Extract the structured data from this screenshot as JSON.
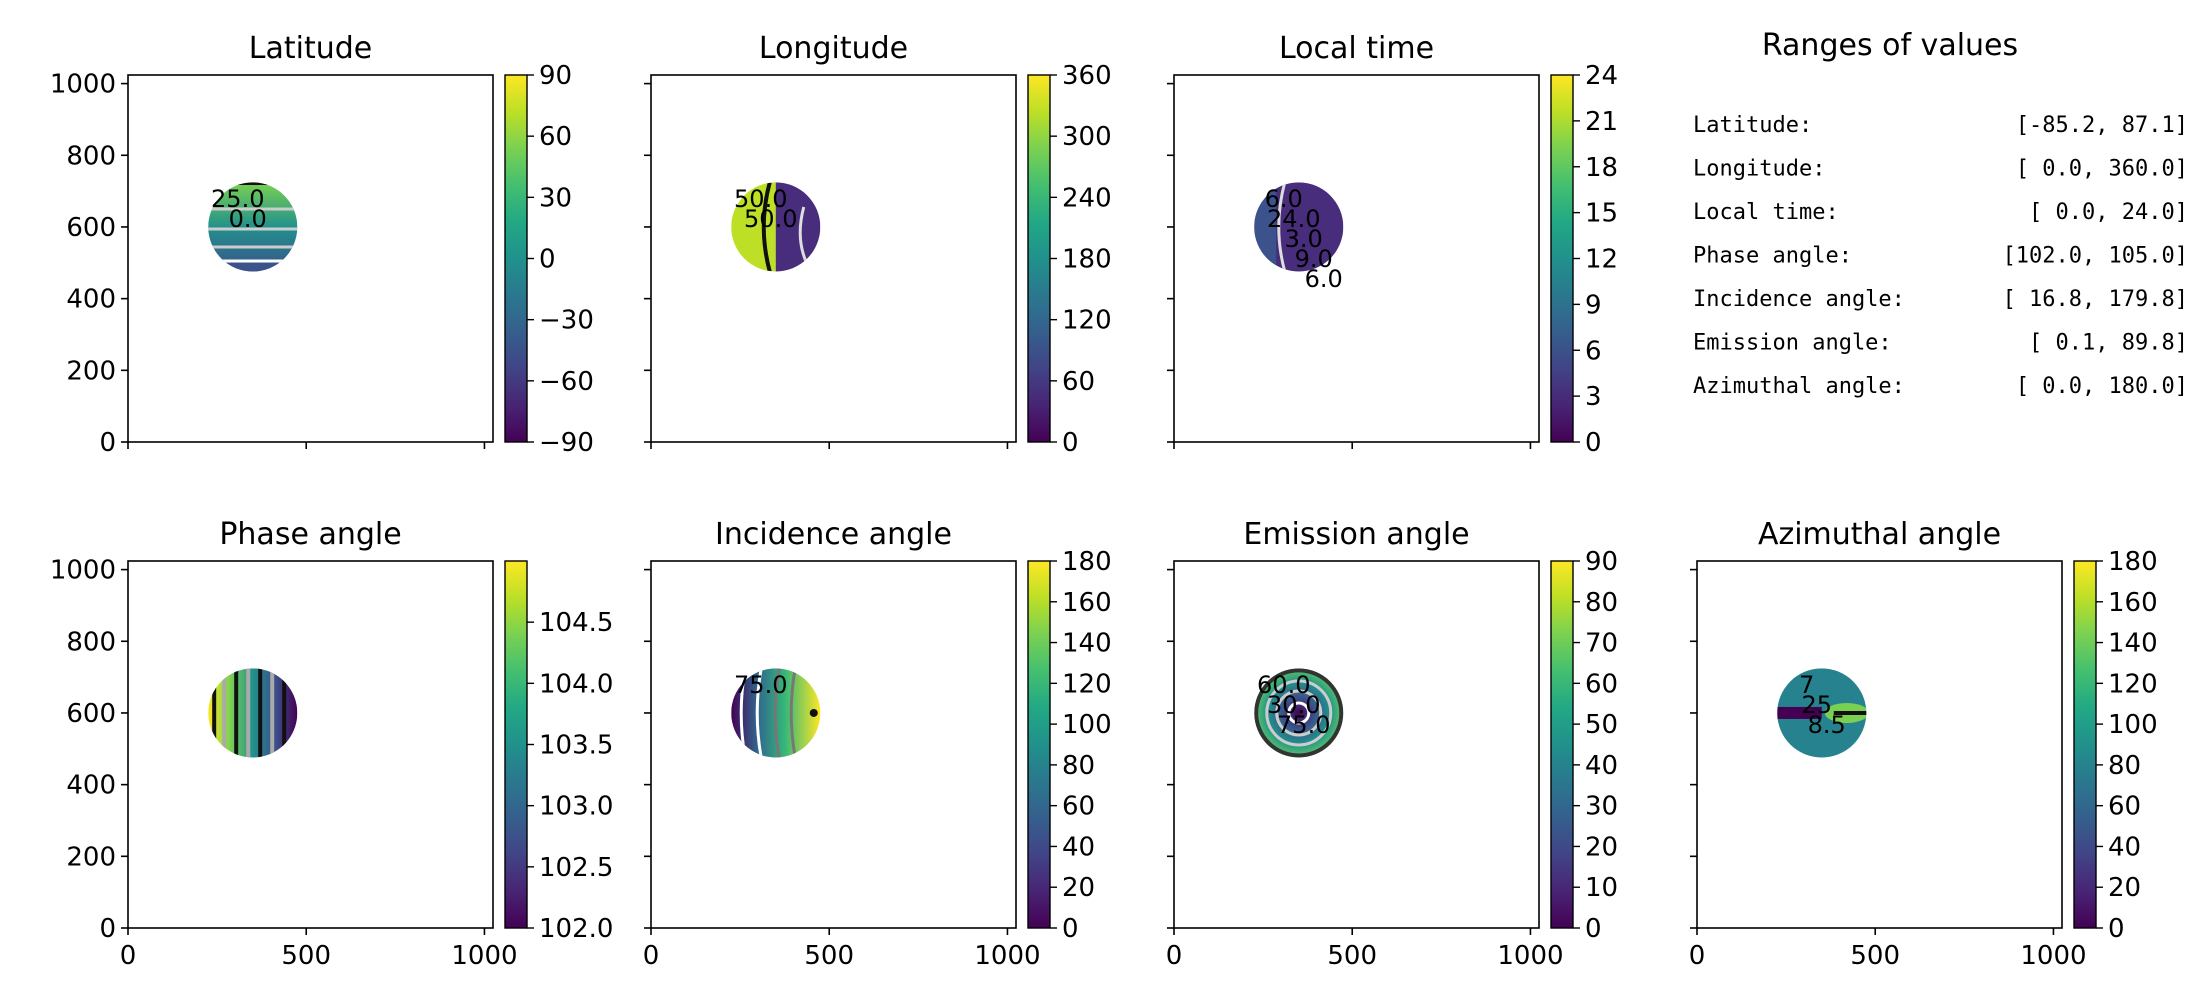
{
  "figure": {
    "background": "#ffffff"
  },
  "axes_common": {
    "xlim": [
      0,
      1024
    ],
    "ylim": [
      0,
      1024
    ],
    "xticks": [
      0,
      500,
      1000
    ],
    "yticks": [
      0,
      200,
      400,
      600,
      800,
      1000
    ],
    "disk_center": [
      350,
      600
    ],
    "disk_radius": 125
  },
  "chart_data": [
    {
      "type": "heatmap",
      "title": "Latitude",
      "show_yticklabels": true,
      "show_xticklabels": false,
      "colorbar": {
        "ticks": [
          "90",
          "60",
          "30",
          "0",
          "−30",
          "−60",
          "−90"
        ],
        "range": [
          -90,
          90
        ]
      },
      "contour_labels": [
        "25.0",
        "0.0"
      ]
    },
    {
      "type": "heatmap",
      "title": "Longitude",
      "show_yticklabels": false,
      "show_xticklabels": false,
      "colorbar": {
        "ticks": [
          "360",
          "300",
          "240",
          "180",
          "120",
          "60",
          "0"
        ],
        "range": [
          0,
          360
        ]
      },
      "contour_labels": [
        "50.0",
        "50.0"
      ]
    },
    {
      "type": "heatmap",
      "title": "Local time",
      "show_yticklabels": false,
      "show_xticklabels": false,
      "colorbar": {
        "ticks": [
          "24",
          "21",
          "18",
          "15",
          "12",
          "9",
          "6",
          "3",
          "0"
        ],
        "range": [
          0,
          24
        ]
      },
      "contour_labels": [
        "6.0",
        "24.0",
        "3.0",
        "9.0",
        "6.0"
      ]
    },
    {
      "type": "heatmap",
      "title": "Phase angle",
      "show_yticklabels": true,
      "show_xticklabels": true,
      "colorbar": {
        "ticks": [
          "104.5",
          "104.0",
          "103.5",
          "103.0",
          "102.5",
          "102.0"
        ],
        "range": [
          102.0,
          105.0
        ]
      },
      "contour_labels": []
    },
    {
      "type": "heatmap",
      "title": "Incidence angle",
      "show_yticklabels": false,
      "show_xticklabels": true,
      "colorbar": {
        "ticks": [
          "180",
          "160",
          "140",
          "120",
          "100",
          "80",
          "60",
          "40",
          "20",
          "0"
        ],
        "range": [
          0,
          180
        ]
      },
      "contour_labels": [
        "75.0"
      ]
    },
    {
      "type": "heatmap",
      "title": "Emission angle",
      "show_yticklabels": false,
      "show_xticklabels": true,
      "colorbar": {
        "ticks": [
          "90",
          "80",
          "70",
          "60",
          "50",
          "40",
          "30",
          "20",
          "10",
          "0"
        ],
        "range": [
          0,
          90
        ]
      },
      "contour_labels": [
        "60.0",
        "30.0",
        "75.0"
      ]
    },
    {
      "type": "heatmap",
      "title": "Azimuthal angle",
      "show_yticklabels": false,
      "show_xticklabels": true,
      "colorbar": {
        "ticks": [
          "180",
          "160",
          "140",
          "120",
          "100",
          "80",
          "60",
          "40",
          "20",
          "0"
        ],
        "range": [
          0,
          180
        ]
      },
      "contour_labels": [
        "7",
        "25",
        "8.5"
      ]
    }
  ],
  "ranges_panel": {
    "title": "Ranges of values",
    "rows": [
      {
        "label": "Latitude:",
        "value": "[-85.2,  87.1]"
      },
      {
        "label": "Longitude:",
        "value": "[  0.0, 360.0]"
      },
      {
        "label": "Local time:",
        "value": "[  0.0,  24.0]"
      },
      {
        "label": "Phase angle:",
        "value": "[102.0, 105.0]"
      },
      {
        "label": "Incidence angle:",
        "value": "[ 16.8, 179.8]"
      },
      {
        "label": "Emission angle:",
        "value": "[  0.1,  89.8]"
      },
      {
        "label": "Azimuthal angle:",
        "value": "[  0.0, 180.0]"
      }
    ]
  }
}
